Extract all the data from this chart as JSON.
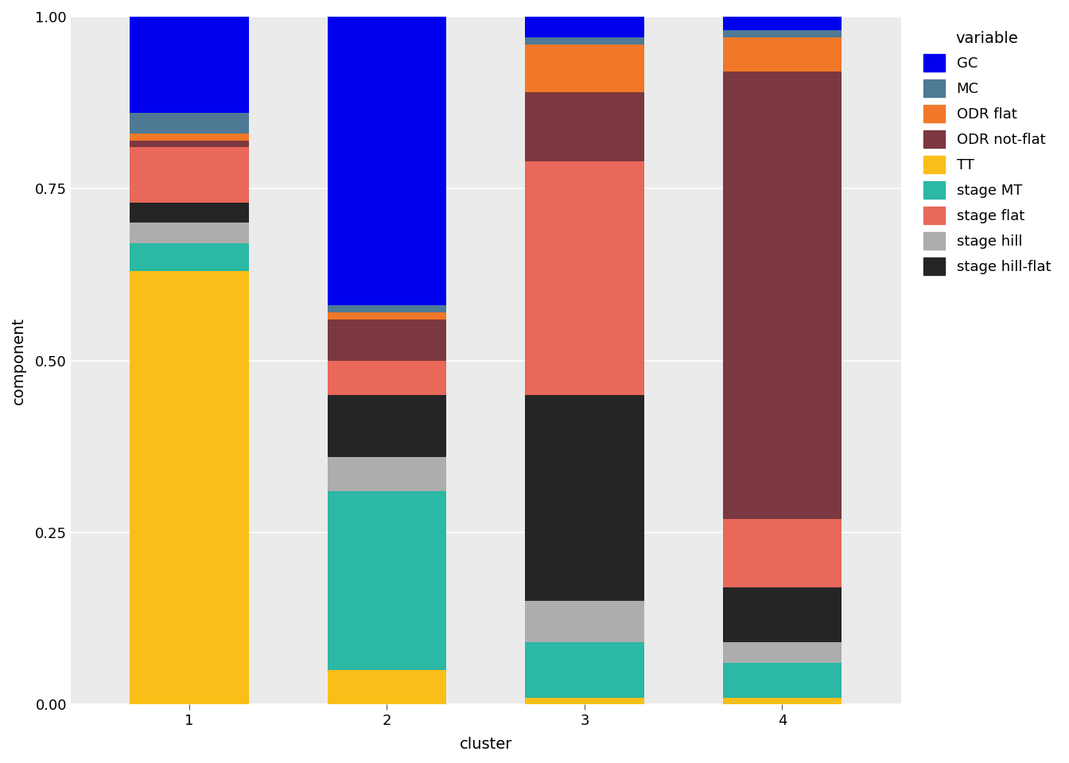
{
  "clusters": [
    "1",
    "2",
    "3",
    "4"
  ],
  "variables": [
    "TT",
    "stage MT",
    "stage hill",
    "stage hill-flat",
    "stage flat",
    "ODR not-flat",
    "ODR flat",
    "MC",
    "GC"
  ],
  "colors": {
    "TT": "#F9BE18",
    "stage MT": "#2BB8A4",
    "stage hill": "#ADADAD",
    "stage hill-flat": "#252525",
    "stage flat": "#E8685A",
    "ODR not-flat": "#7C3840",
    "ODR flat": "#F07828",
    "MC": "#4E7A96",
    "GC": "#0000EE"
  },
  "data": {
    "TT": [
      0.63,
      0.05,
      0.01,
      0.01
    ],
    "stage MT": [
      0.04,
      0.26,
      0.08,
      0.05
    ],
    "stage hill": [
      0.03,
      0.05,
      0.06,
      0.03
    ],
    "stage hill-flat": [
      0.03,
      0.09,
      0.3,
      0.08
    ],
    "stage flat": [
      0.08,
      0.05,
      0.34,
      0.1
    ],
    "ODR not-flat": [
      0.01,
      0.06,
      0.1,
      0.65
    ],
    "ODR flat": [
      0.01,
      0.01,
      0.07,
      0.05
    ],
    "MC": [
      0.03,
      0.01,
      0.01,
      0.01
    ],
    "GC": [
      0.14,
      0.42,
      0.03,
      0.02
    ]
  },
  "xlabel": "cluster",
  "ylabel": "component",
  "legend_title": "variable",
  "ylim": [
    0.0,
    1.0
  ],
  "background_color": "#EBEBEB"
}
